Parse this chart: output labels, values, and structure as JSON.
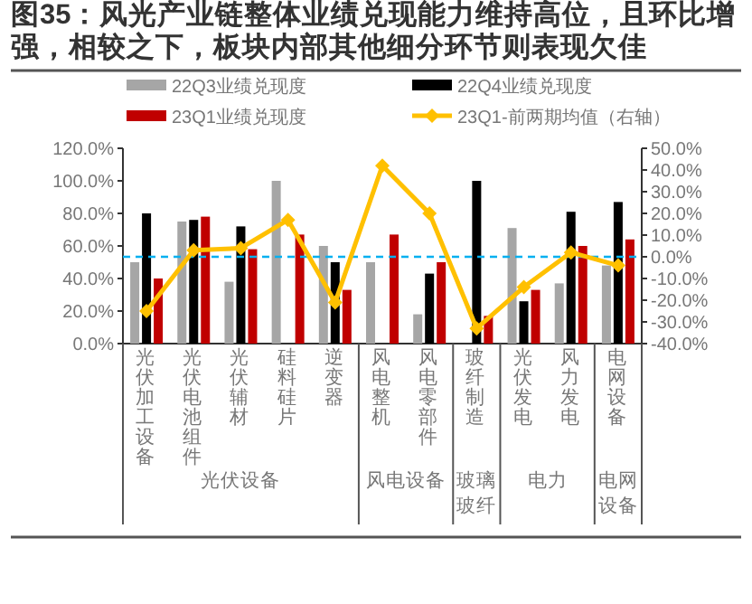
{
  "chart_data": {
    "type": "bar",
    "title": "图35：风光产业链整体业绩兑现能力维持高位，且环比增强，相较之下，板块内部其他细分环节则表现欠佳",
    "categories": [
      "光伏加工设备",
      "光伏电池组件",
      "光伏辅材",
      "硅料硅片",
      "逆变器",
      "风电整机",
      "风电零部件",
      "玻纤制造",
      "光伏发电",
      "风力发电",
      "电网设备"
    ],
    "series": [
      {
        "name": "22Q3业绩兑现度",
        "color": "#a6a6a6",
        "values": [
          50,
          75,
          38,
          100,
          60,
          50,
          18,
          null,
          71,
          37,
          48
        ]
      },
      {
        "name": "22Q4业绩兑现度",
        "color": "#000000",
        "values": [
          80,
          76,
          72,
          null,
          50,
          null,
          43,
          100,
          26,
          81,
          87
        ]
      },
      {
        "name": "23Q1业绩兑现度",
        "color": "#c00000",
        "values": [
          40,
          78,
          58,
          67,
          33,
          67,
          50,
          17,
          33,
          60,
          64
        ]
      },
      {
        "name": "23Q1-前两期均值（右轴）",
        "type": "line",
        "axis": "y2",
        "color": "#ffc000",
        "marker": "diamond",
        "values": [
          -25,
          3,
          4,
          17,
          -21,
          42,
          20,
          -33,
          -14,
          2,
          -4
        ]
      }
    ],
    "ylim": [
      0,
      120
    ],
    "yticks": [
      {
        "value": 0,
        "label": "0.0%"
      },
      {
        "value": 20,
        "label": "20.0%"
      },
      {
        "value": 40,
        "label": "40.0%"
      },
      {
        "value": 60,
        "label": "60.0%"
      },
      {
        "value": 80,
        "label": "80.0%"
      },
      {
        "value": 100,
        "label": "100.0%"
      },
      {
        "value": 120,
        "label": "120.0%"
      }
    ],
    "y2lim": [
      -40,
      50
    ],
    "y2ticks": [
      {
        "value": -40,
        "label": "-40.0%"
      },
      {
        "value": -30,
        "label": "-30.0%"
      },
      {
        "value": -20,
        "label": "-20.0%"
      },
      {
        "value": -10,
        "label": "-10.0%"
      },
      {
        "value": 0,
        "label": "0.0%"
      },
      {
        "value": 10,
        "label": "10.0%"
      },
      {
        "value": 20,
        "label": "20.0%"
      },
      {
        "value": 30,
        "label": "30.0%"
      },
      {
        "value": 40,
        "label": "40.0%"
      },
      {
        "value": 50,
        "label": "50.0%"
      }
    ],
    "ref_lines": [
      {
        "axis": "y2",
        "value": 0,
        "color": "#00b0f0",
        "line_style": "dashed"
      }
    ],
    "annotations": [
      "光伏设备",
      "风电设备",
      "玻璃玻纤",
      "电力",
      "电网设备"
    ],
    "legend": "top",
    "grid": false
  }
}
